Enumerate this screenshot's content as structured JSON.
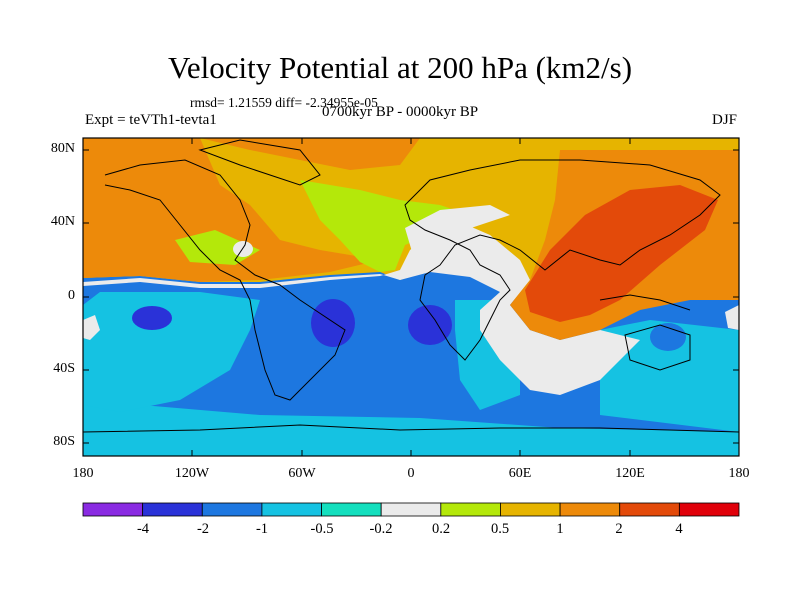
{
  "title": "Velocity Potential at 200 hPa (km2/s)",
  "stats": "rmsd= 1.21559  diff= -2.34955e-05",
  "experiment": "Expt = teVTh1-tevta1",
  "period": "0700kyr BP - 0000kyr BP",
  "season": "DJF",
  "lat_ticks": [
    "80N",
    "40N",
    "0",
    "40S",
    "80S"
  ],
  "lon_ticks": [
    "180",
    "120W",
    "60W",
    "0",
    "60E",
    "120E",
    "180"
  ],
  "colorbar": {
    "labels": [
      "-4",
      "-2",
      "-1",
      "-0.5",
      "-0.2",
      "0.2",
      "0.5",
      "1",
      "2",
      "4"
    ],
    "colors": [
      "#8a2be2",
      "#2a32d8",
      "#1d77e0",
      "#15c2e2",
      "#14dfbe",
      "#ebebeb",
      "#b4e80a",
      "#e6b400",
      "#ed8a0a",
      "#e34a0a",
      "#e0000a"
    ]
  }
}
